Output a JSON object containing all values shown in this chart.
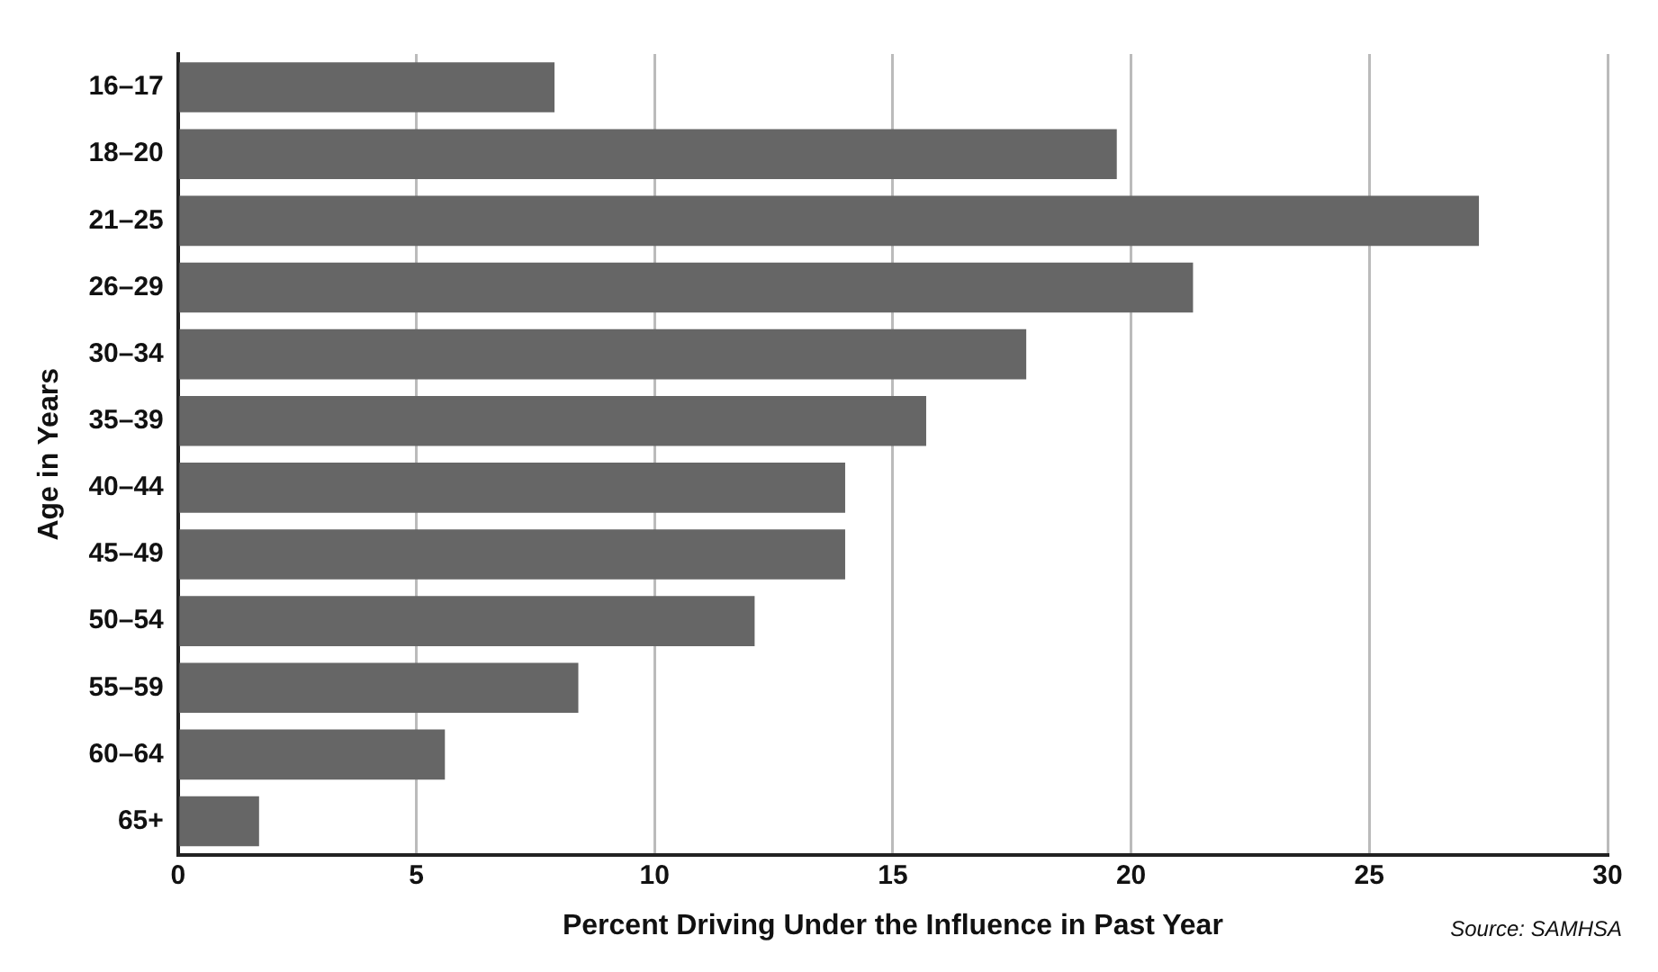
{
  "chart_data": {
    "type": "bar",
    "orientation": "horizontal",
    "ylabel": "Age in Years",
    "xlabel": "Percent Driving Under the Influence in Past Year",
    "categories": [
      "16–17",
      "18–20",
      "21–25",
      "26–29",
      "30–34",
      "35–39",
      "40–44",
      "45–49",
      "50–54",
      "55–59",
      "60–64",
      "65+"
    ],
    "values": [
      7.9,
      19.7,
      27.3,
      21.3,
      17.8,
      15.7,
      14.0,
      14.0,
      12.1,
      8.4,
      5.6,
      1.7
    ],
    "color": "#666666",
    "xlim": [
      0,
      30
    ],
    "xticks": [
      0,
      5,
      10,
      15,
      20,
      25,
      30
    ],
    "grid": "x",
    "annotations": [
      "Source: SAMHSA"
    ]
  }
}
